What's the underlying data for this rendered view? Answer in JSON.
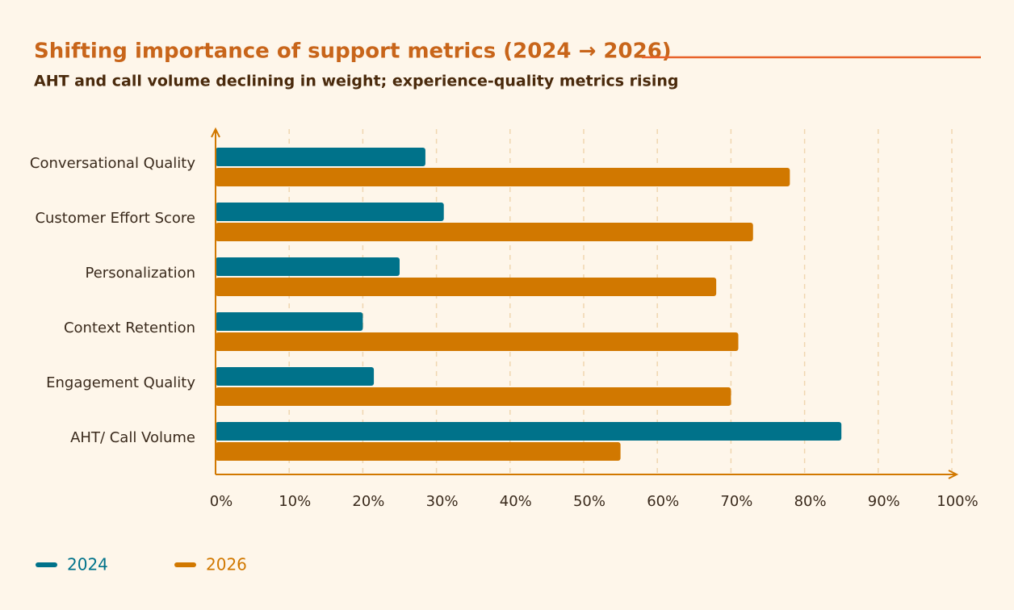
{
  "chart_data": {
    "type": "hbar",
    "title": "Shifting importance of support metrics (2024 → 2026)",
    "subtitle": "AHT and call volume declining in weight; experience-quality metrics rising",
    "categories": [
      "Conversational Quality",
      "Customer Effort Score",
      "Personalization",
      "Context Retention",
      "Engagement Quality",
      "AHT/ Call Volume"
    ],
    "series": [
      {
        "name": "2024",
        "color": "#00728a",
        "values": [
          28.5,
          31,
          25,
          20,
          21.5,
          85
        ]
      },
      {
        "name": "2026",
        "color": "#d17800",
        "values": [
          78,
          73,
          68,
          71,
          70,
          55
        ]
      }
    ],
    "xlim": [
      0,
      100
    ],
    "xticks": [
      {
        "value": 0,
        "label": "0%"
      },
      {
        "value": 10,
        "label": "10%"
      },
      {
        "value": 20,
        "label": "20%"
      },
      {
        "value": 30,
        "label": "30%"
      },
      {
        "value": 40,
        "label": "40%"
      },
      {
        "value": 50,
        "label": "50%"
      },
      {
        "value": 60,
        "label": "60%"
      },
      {
        "value": 70,
        "label": "70%"
      },
      {
        "value": 80,
        "label": "80%"
      },
      {
        "value": 90,
        "label": "90%"
      },
      {
        "value": 100,
        "label": "100%"
      }
    ],
    "grid": true,
    "legend": "bottom-left"
  }
}
